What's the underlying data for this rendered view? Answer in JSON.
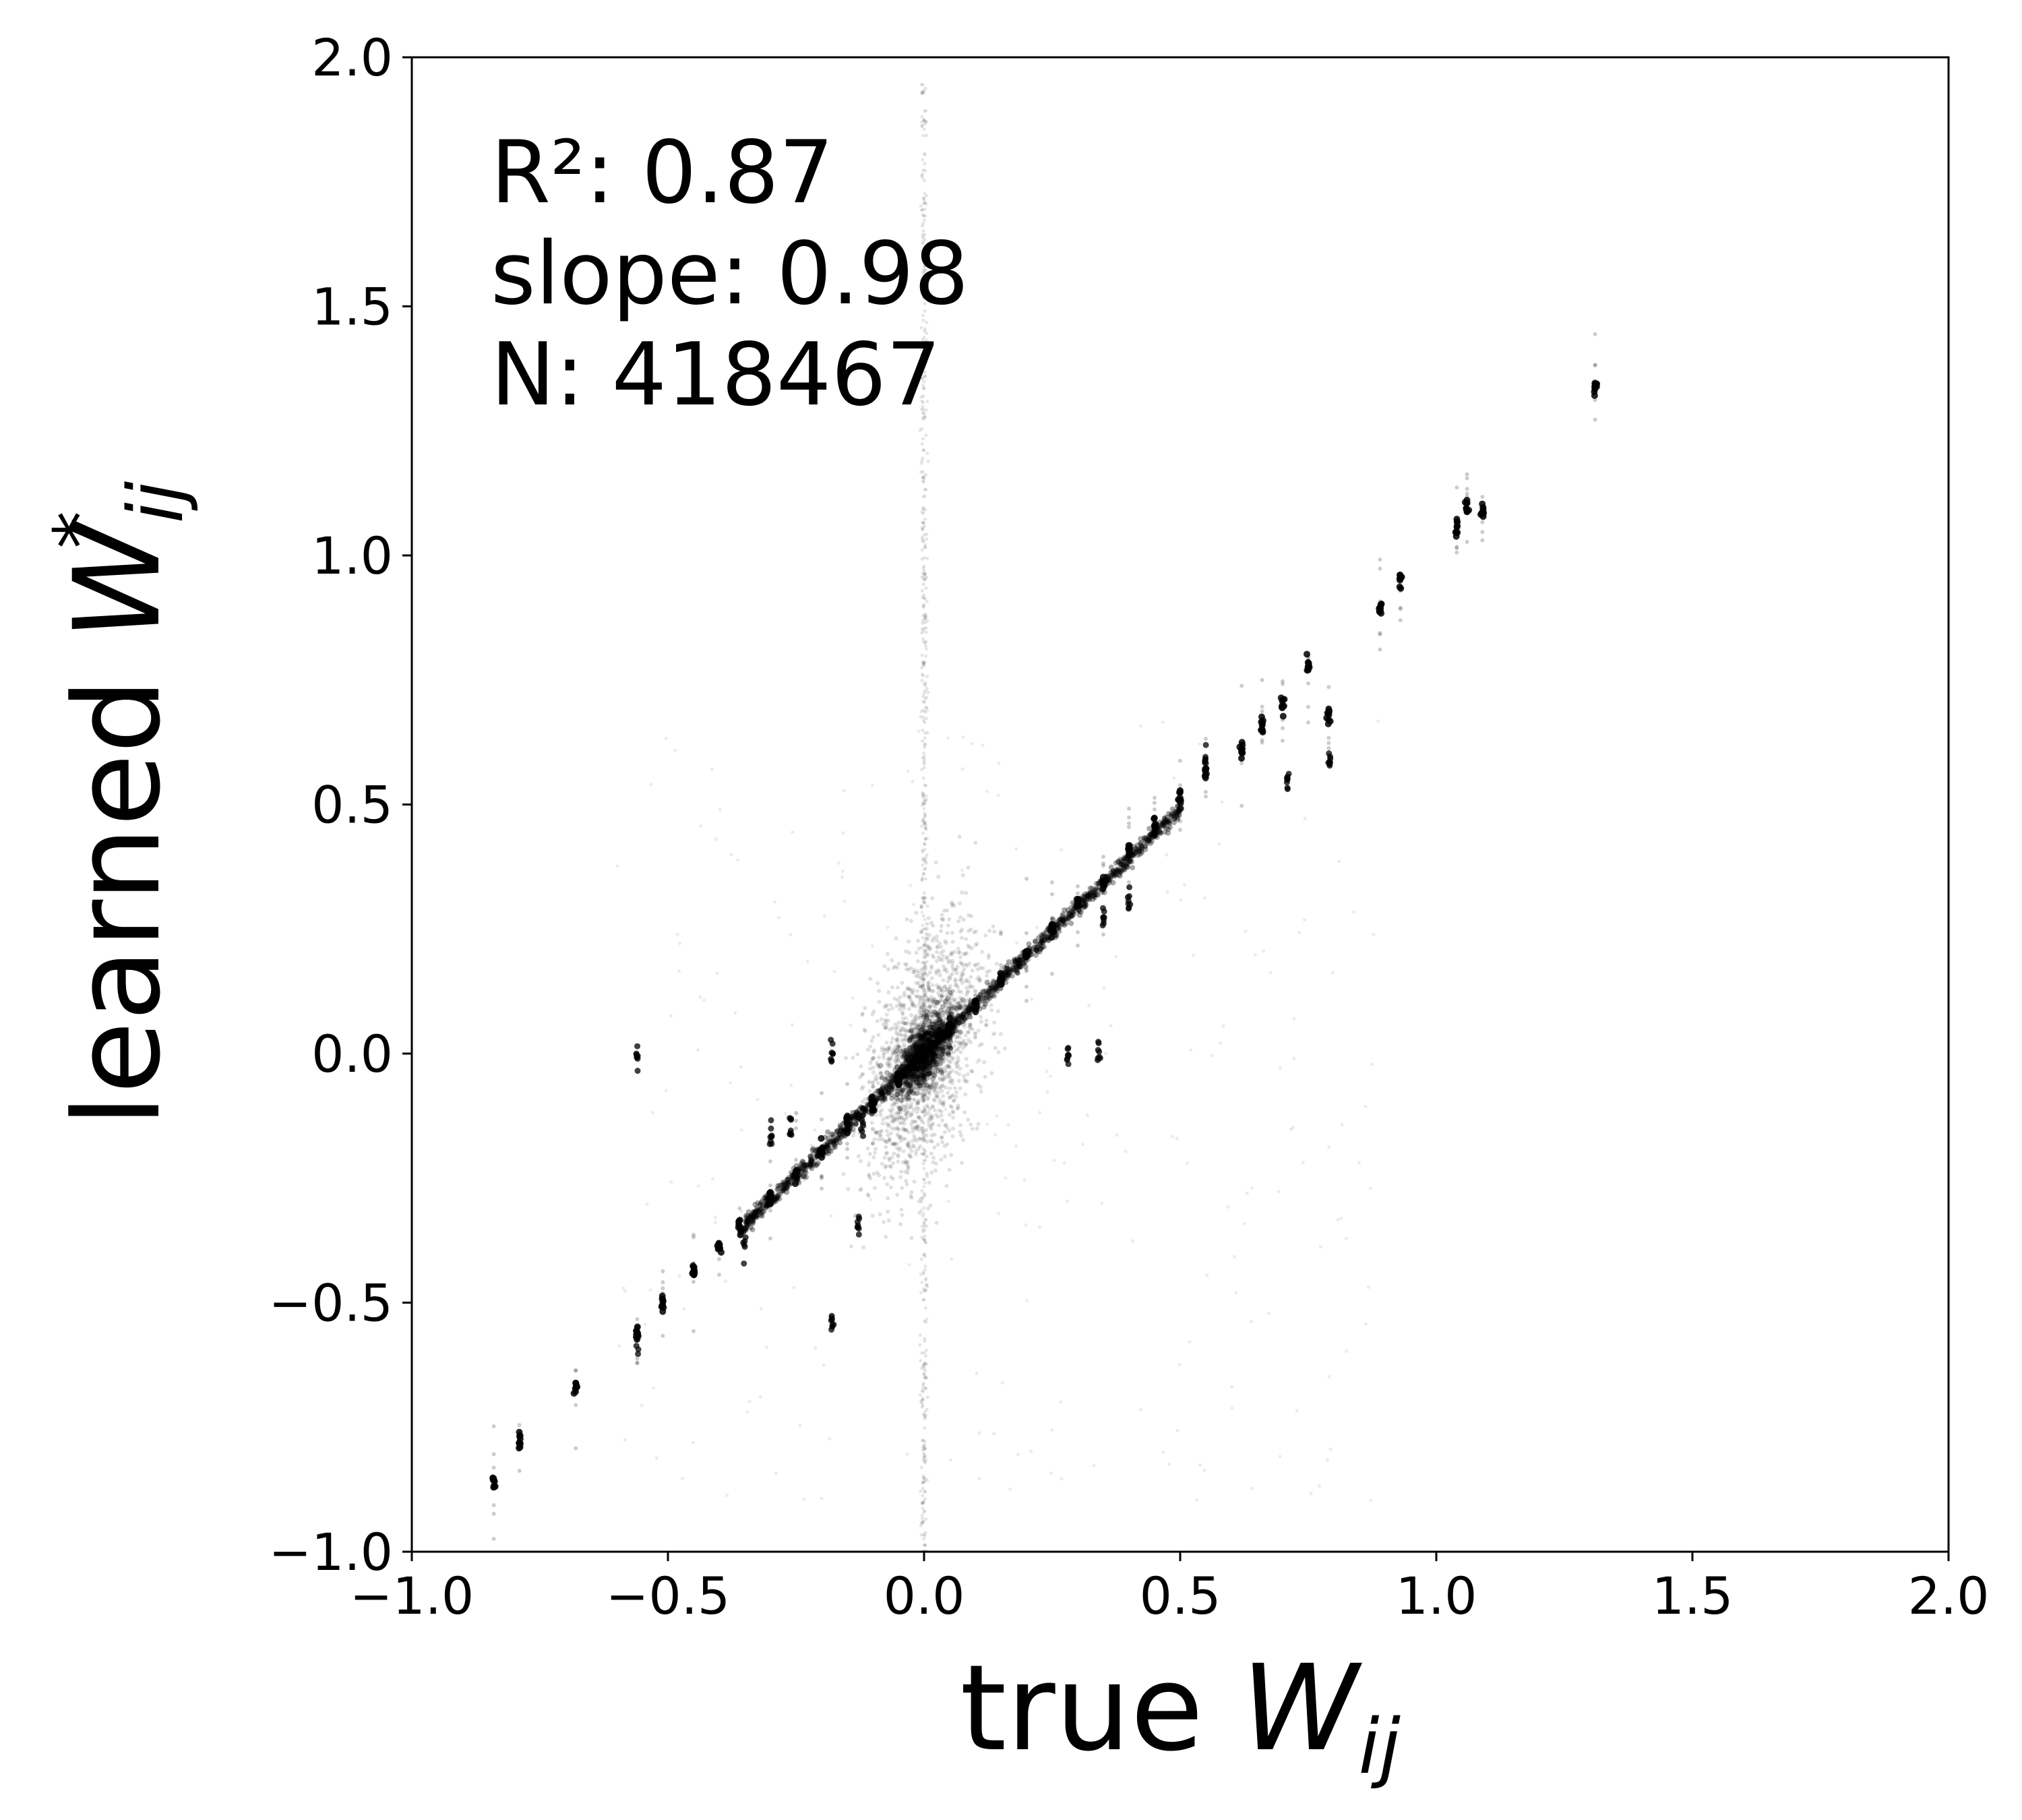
{
  "chart_data": {
    "type": "scatter",
    "title": "",
    "xlabel": {
      "text": "true ",
      "symbol": "W",
      "subscript": "ij"
    },
    "ylabel": {
      "text": "learned ",
      "symbol": "W",
      "subscript": "ij",
      "superscript": "*"
    },
    "xlim": [
      -1.0,
      2.0
    ],
    "ylim": [
      -1.0,
      2.0
    ],
    "xticks": [
      -1.0,
      -0.5,
      0.0,
      0.5,
      1.0,
      1.5,
      2.0
    ],
    "yticks": [
      -1.0,
      -0.5,
      0.0,
      0.5,
      1.0,
      1.5,
      2.0
    ],
    "xtick_labels": [
      "−1.0",
      "−0.5",
      "0.0",
      "0.5",
      "1.0",
      "1.5",
      "2.0"
    ],
    "ytick_labels": [
      "−1.0",
      "−0.5",
      "0.0",
      "0.5",
      "1.0",
      "1.5",
      "2.0"
    ],
    "grid": false,
    "annotations": [
      "R²: 0.87",
      "slope: 0.98",
      "N: 418467"
    ],
    "point_color": "#000000",
    "clusters": [
      {
        "x": -0.84,
        "y": -0.86
      },
      {
        "x": -0.79,
        "y": -0.78
      },
      {
        "x": -0.68,
        "y": -0.67
      },
      {
        "x": -0.56,
        "y": -0.56
      },
      {
        "x": -0.51,
        "y": -0.5
      },
      {
        "x": -0.45,
        "y": -0.44
      },
      {
        "x": -0.4,
        "y": -0.39
      },
      {
        "x": -0.36,
        "y": -0.35
      },
      {
        "x": -0.3,
        "y": -0.29
      },
      {
        "x": -0.25,
        "y": -0.24
      },
      {
        "x": -0.2,
        "y": -0.19
      },
      {
        "x": -0.15,
        "y": -0.14
      },
      {
        "x": -0.1,
        "y": -0.1
      },
      {
        "x": -0.05,
        "y": -0.05
      },
      {
        "x": 0.0,
        "y": 0.0
      },
      {
        "x": 0.05,
        "y": 0.05
      },
      {
        "x": 0.1,
        "y": 0.1
      },
      {
        "x": 0.15,
        "y": 0.15
      },
      {
        "x": 0.2,
        "y": 0.2
      },
      {
        "x": 0.25,
        "y": 0.25
      },
      {
        "x": 0.3,
        "y": 0.3
      },
      {
        "x": 0.35,
        "y": 0.34
      },
      {
        "x": 0.4,
        "y": 0.41
      },
      {
        "x": 0.45,
        "y": 0.46
      },
      {
        "x": 0.5,
        "y": 0.51
      },
      {
        "x": 0.55,
        "y": 0.57
      },
      {
        "x": 0.62,
        "y": 0.61
      },
      {
        "x": 0.66,
        "y": 0.66
      },
      {
        "x": 0.7,
        "y": 0.7
      },
      {
        "x": 0.75,
        "y": 0.78
      },
      {
        "x": 0.79,
        "y": 0.68
      },
      {
        "x": 0.89,
        "y": 0.89
      },
      {
        "x": 0.93,
        "y": 0.95
      },
      {
        "x": 1.04,
        "y": 1.06
      },
      {
        "x": 1.06,
        "y": 1.1
      },
      {
        "x": 1.09,
        "y": 1.09
      },
      {
        "x": 1.31,
        "y": 1.34
      }
    ],
    "outliers": [
      {
        "x": -0.56,
        "y": -0.01
      },
      {
        "x": -0.35,
        "y": -0.38
      },
      {
        "x": -0.3,
        "y": -0.16
      },
      {
        "x": -0.26,
        "y": -0.15
      },
      {
        "x": -0.18,
        "y": -0.54
      },
      {
        "x": -0.18,
        "y": 0.0
      },
      {
        "x": -0.13,
        "y": -0.34
      },
      {
        "x": -0.12,
        "y": -0.15
      },
      {
        "x": -0.56,
        "y": -0.58
      },
      {
        "x": 0.34,
        "y": 0.0
      },
      {
        "x": 0.28,
        "y": 0.0
      },
      {
        "x": 0.71,
        "y": 0.54
      },
      {
        "x": 0.55,
        "y": 0.59
      },
      {
        "x": 0.79,
        "y": 0.59
      },
      {
        "x": 0.4,
        "y": 0.31
      },
      {
        "x": 0.35,
        "y": 0.28
      }
    ]
  }
}
